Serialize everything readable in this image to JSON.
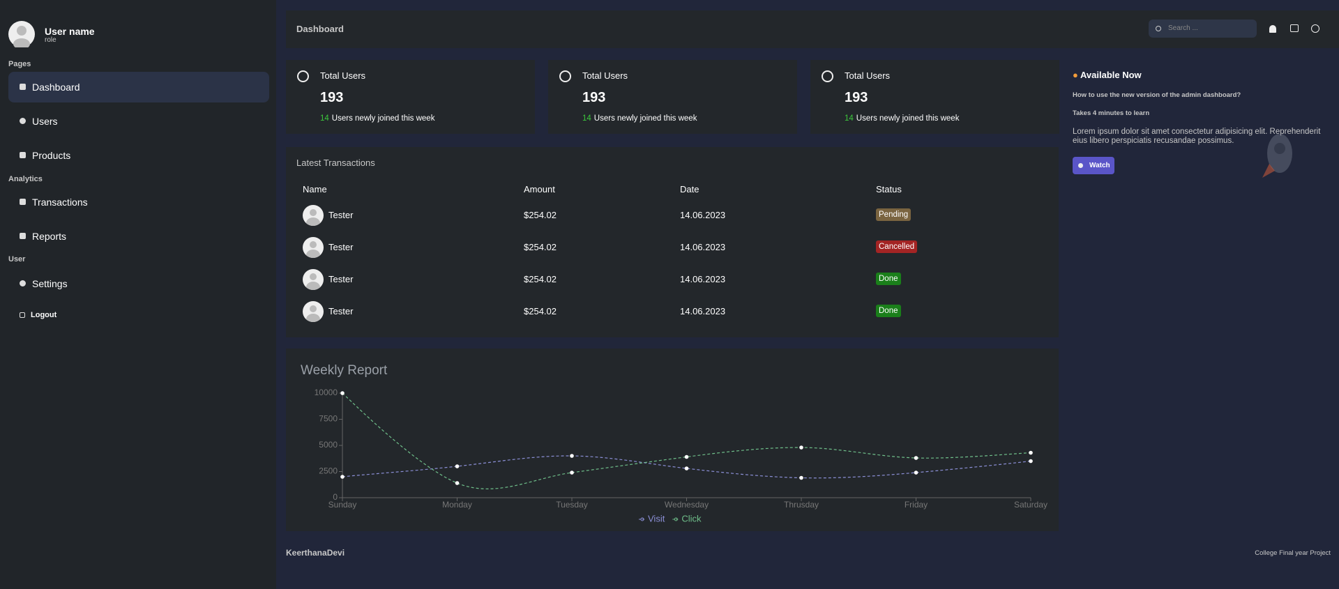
{
  "sidebar": {
    "user_name": "User name",
    "role": "role",
    "sections": [
      {
        "title": "Pages",
        "items": [
          "Dashboard",
          "Users",
          "Products"
        ]
      },
      {
        "title": "Analytics",
        "items": [
          "Transactions",
          "Reports"
        ]
      },
      {
        "title": "User",
        "items": [
          "Settings"
        ]
      }
    ],
    "logout": "Logout"
  },
  "header": {
    "title": "Dashboard",
    "search_placeholder": "Search ..."
  },
  "stats": [
    {
      "title": "Total Users",
      "value": 193,
      "new_count": 14,
      "note": "Users newly joined this week"
    },
    {
      "title": "Total Users",
      "value": 193,
      "new_count": 14,
      "note": "Users newly joined this week"
    },
    {
      "title": "Total Users",
      "value": 193,
      "new_count": 14,
      "note": "Users newly joined this week"
    }
  ],
  "promo": {
    "title": "Available Now",
    "question": "How to use the new version of the admin dashboard?",
    "duration": "Takes 4 minutes to learn",
    "text": "Lorem ipsum dolor sit amet consectetur adipisicing elit. Reprehenderit eius libero perspiciatis recusandae possimus.",
    "button": "Watch"
  },
  "transactions": {
    "title": "Latest Transactions",
    "columns": [
      "Name",
      "Amount",
      "Date",
      "Status"
    ],
    "rows": [
      {
        "name": "Tester",
        "amount": "$254.02",
        "date": "14.06.2023",
        "status": "Pending",
        "status_color": "#7a6440"
      },
      {
        "name": "Tester",
        "amount": "$254.02",
        "date": "14.06.2023",
        "status": "Cancelled",
        "status_color": "#a32424"
      },
      {
        "name": "Tester",
        "amount": "$254.02",
        "date": "14.06.2023",
        "status": "Done",
        "status_color": "#1a7f1a"
      },
      {
        "name": "Tester",
        "amount": "$254.02",
        "date": "14.06.2023",
        "status": "Done",
        "status_color": "#1a7f1a"
      }
    ]
  },
  "chart_data": {
    "type": "line",
    "title": "Weekly Report",
    "categories": [
      "Sunday",
      "Monday",
      "Tuesday",
      "Wednesday",
      "Thrusday",
      "Friday",
      "Saturday"
    ],
    "series": [
      {
        "name": "Visit",
        "color": "#8b8fd6",
        "values": [
          2000,
          3000,
          4000,
          2800,
          1900,
          2400,
          3500
        ]
      },
      {
        "name": "Click",
        "color": "#6fbf8a",
        "values": [
          10000,
          1400,
          2400,
          3900,
          4800,
          3800,
          4300
        ]
      }
    ],
    "ylim": [
      0,
      10000
    ],
    "yticks": [
      0,
      2500,
      5000,
      7500,
      10000
    ]
  },
  "footer": {
    "author": "KeerthanaDevi",
    "note": "College Final year Project"
  }
}
